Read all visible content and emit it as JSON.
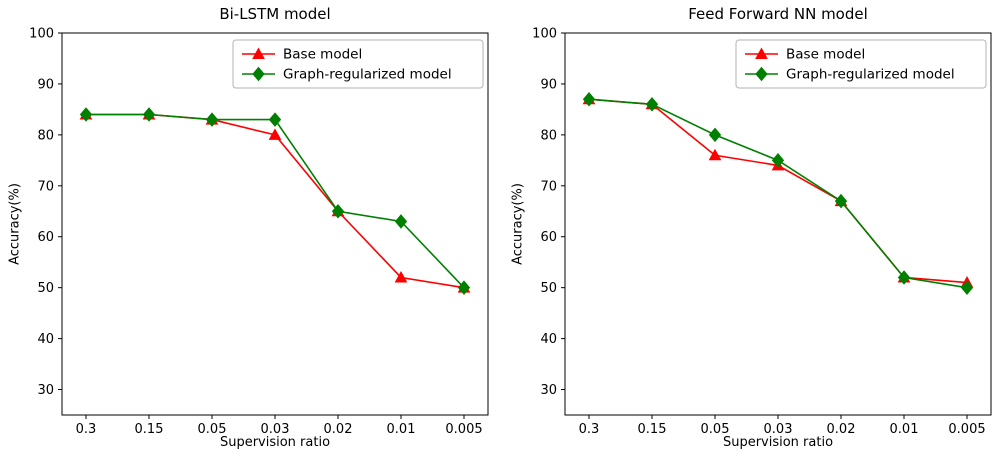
{
  "chart_data": [
    {
      "type": "line",
      "title": "Bi-LSTM model",
      "xlabel": "Supervision ratio",
      "ylabel": "Accuracy(%)",
      "categories": [
        "0.3",
        "0.15",
        "0.05",
        "0.03",
        "0.02",
        "0.01",
        "0.005"
      ],
      "yticks": [
        30,
        40,
        50,
        60,
        70,
        80,
        90,
        100
      ],
      "ylim": [
        25,
        100
      ],
      "grid": false,
      "legend_position": "upper right",
      "series": [
        {
          "name": "Base model",
          "color": "#ff0000",
          "marker": "triangle",
          "values": [
            84,
            84,
            83,
            80,
            65,
            52,
            50
          ]
        },
        {
          "name": "Graph-regularized model",
          "color": "#008000",
          "marker": "diamond",
          "values": [
            84,
            84,
            83,
            83,
            65,
            63,
            50
          ]
        }
      ]
    },
    {
      "type": "line",
      "title": "Feed Forward NN model",
      "xlabel": "Supervision ratio",
      "ylabel": "Accuracy(%)",
      "categories": [
        "0.3",
        "0.15",
        "0.05",
        "0.03",
        "0.02",
        "0.01",
        "0.005"
      ],
      "yticks": [
        30,
        40,
        50,
        60,
        70,
        80,
        90,
        100
      ],
      "ylim": [
        25,
        100
      ],
      "grid": false,
      "legend_position": "upper right",
      "series": [
        {
          "name": "Base model",
          "color": "#ff0000",
          "marker": "triangle",
          "values": [
            87,
            86,
            76,
            74,
            67,
            52,
            51
          ]
        },
        {
          "name": "Graph-regularized model",
          "color": "#008000",
          "marker": "diamond",
          "values": [
            87,
            86,
            80,
            75,
            67,
            52,
            50
          ]
        }
      ]
    }
  ]
}
